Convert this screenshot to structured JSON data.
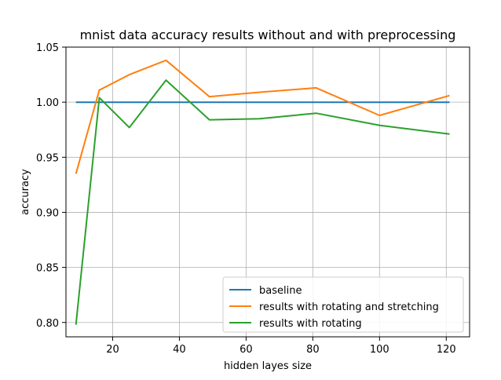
{
  "chart_data": {
    "type": "line",
    "title": "mnist data accuracy results without and with preprocessing",
    "xlabel": "hidden layes size",
    "ylabel": "accuracy",
    "xlim": [
      6,
      127
    ],
    "ylim": [
      0.787,
      1.05
    ],
    "xticks": [
      20,
      40,
      60,
      80,
      100,
      120
    ],
    "yticks": [
      0.8,
      0.85,
      0.9,
      0.95,
      1.0,
      1.05
    ],
    "ytick_labels": [
      "0.80",
      "0.85",
      "0.90",
      "0.95",
      "1.00",
      "1.05"
    ],
    "grid": true,
    "legend": "lower-right",
    "series": [
      {
        "name": "baseline",
        "color": "#1f77b4",
        "x": [
          9,
          121
        ],
        "y": [
          1.0,
          1.0
        ]
      },
      {
        "name": "results with rotating and stretching",
        "color": "#ff7f0e",
        "x": [
          9,
          16,
          25,
          36,
          49,
          64,
          81,
          100,
          121
        ],
        "y": [
          0.935,
          1.011,
          1.025,
          1.038,
          1.005,
          1.009,
          1.013,
          0.988,
          1.006
        ]
      },
      {
        "name": "results with rotating",
        "color": "#2ca02c",
        "x": [
          9,
          16,
          25,
          36,
          49,
          64,
          81,
          100,
          121
        ],
        "y": [
          0.798,
          1.004,
          0.977,
          1.02,
          0.984,
          0.985,
          0.99,
          0.979,
          0.971
        ]
      }
    ]
  }
}
